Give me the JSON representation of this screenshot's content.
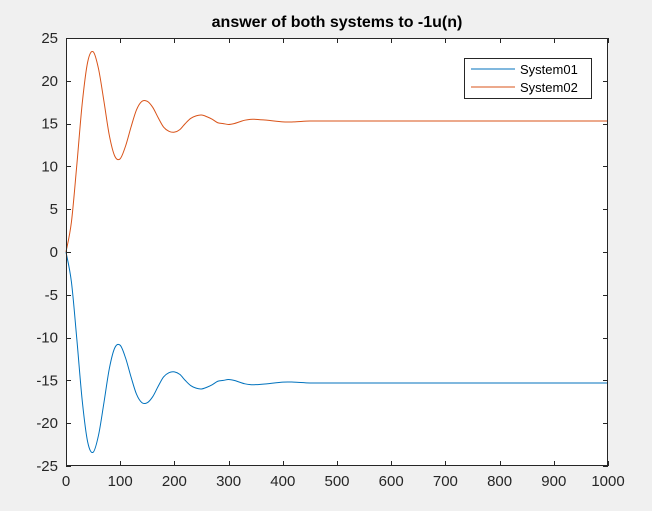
{
  "chart_data": {
    "type": "line",
    "title": "answer of both systems to -1u(n)",
    "xlabel": "",
    "ylabel": "",
    "xlim": [
      0,
      1000
    ],
    "ylim": [
      -25,
      25
    ],
    "xticks": [
      0,
      100,
      200,
      300,
      400,
      500,
      600,
      700,
      800,
      900,
      1000
    ],
    "yticks": [
      -25,
      -20,
      -15,
      -10,
      -5,
      0,
      5,
      10,
      15,
      20,
      25
    ],
    "xtick_labels": [
      "0",
      "100",
      "200",
      "300",
      "400",
      "500",
      "600",
      "700",
      "800",
      "900",
      "1000"
    ],
    "ytick_labels": [
      "-25",
      "-20",
      "-15",
      "-10",
      "-5",
      "0",
      "5",
      "10",
      "15",
      "20",
      "25"
    ],
    "grid": false,
    "legend_position": "top-right",
    "series": [
      {
        "name": "System01",
        "color": "#0072bd",
        "points": [
          [
            0,
            0
          ],
          [
            10,
            -3.5
          ],
          [
            20,
            -10.2
          ],
          [
            30,
            -17.4
          ],
          [
            40,
            -22.2
          ],
          [
            50,
            -23.4
          ],
          [
            60,
            -21.4
          ],
          [
            70,
            -17.6
          ],
          [
            80,
            -13.6
          ],
          [
            90,
            -11.2
          ],
          [
            100,
            -10.9
          ],
          [
            110,
            -12.4
          ],
          [
            120,
            -14.6
          ],
          [
            130,
            -16.6
          ],
          [
            140,
            -17.6
          ],
          [
            150,
            -17.6
          ],
          [
            160,
            -16.9
          ],
          [
            170,
            -15.7
          ],
          [
            180,
            -14.6
          ],
          [
            190,
            -14.1
          ],
          [
            200,
            -14.0
          ],
          [
            210,
            -14.3
          ],
          [
            220,
            -15.0
          ],
          [
            230,
            -15.6
          ],
          [
            240,
            -15.9
          ],
          [
            250,
            -16.0
          ],
          [
            260,
            -15.8
          ],
          [
            270,
            -15.5
          ],
          [
            280,
            -15.1
          ],
          [
            290,
            -15.0
          ],
          [
            300,
            -14.9
          ],
          [
            310,
            -15.0
          ],
          [
            320,
            -15.2
          ],
          [
            330,
            -15.4
          ],
          [
            340,
            -15.5
          ],
          [
            350,
            -15.5
          ],
          [
            370,
            -15.4
          ],
          [
            400,
            -15.2
          ],
          [
            420,
            -15.2
          ],
          [
            450,
            -15.3
          ],
          [
            480,
            -15.3
          ],
          [
            500,
            -15.3
          ],
          [
            550,
            -15.3
          ],
          [
            600,
            -15.3
          ],
          [
            700,
            -15.3
          ],
          [
            800,
            -15.3
          ],
          [
            900,
            -15.3
          ],
          [
            1000,
            -15.3
          ]
        ]
      },
      {
        "name": "System02",
        "color": "#d95319",
        "points": [
          [
            0,
            0
          ],
          [
            10,
            3.5
          ],
          [
            20,
            10.2
          ],
          [
            30,
            17.4
          ],
          [
            40,
            22.2
          ],
          [
            50,
            23.4
          ],
          [
            60,
            21.4
          ],
          [
            70,
            17.6
          ],
          [
            80,
            13.6
          ],
          [
            90,
            11.2
          ],
          [
            100,
            10.9
          ],
          [
            110,
            12.4
          ],
          [
            120,
            14.6
          ],
          [
            130,
            16.6
          ],
          [
            140,
            17.6
          ],
          [
            150,
            17.6
          ],
          [
            160,
            16.9
          ],
          [
            170,
            15.7
          ],
          [
            180,
            14.6
          ],
          [
            190,
            14.1
          ],
          [
            200,
            14.0
          ],
          [
            210,
            14.3
          ],
          [
            220,
            15.0
          ],
          [
            230,
            15.6
          ],
          [
            240,
            15.9
          ],
          [
            250,
            16.0
          ],
          [
            260,
            15.8
          ],
          [
            270,
            15.5
          ],
          [
            280,
            15.1
          ],
          [
            290,
            15.0
          ],
          [
            300,
            14.9
          ],
          [
            310,
            15.0
          ],
          [
            320,
            15.2
          ],
          [
            330,
            15.4
          ],
          [
            340,
            15.5
          ],
          [
            350,
            15.5
          ],
          [
            370,
            15.4
          ],
          [
            400,
            15.2
          ],
          [
            420,
            15.2
          ],
          [
            450,
            15.3
          ],
          [
            480,
            15.3
          ],
          [
            500,
            15.3
          ],
          [
            550,
            15.3
          ],
          [
            600,
            15.3
          ],
          [
            700,
            15.3
          ],
          [
            800,
            15.3
          ],
          [
            900,
            15.3
          ],
          [
            1000,
            15.3
          ]
        ]
      }
    ]
  }
}
